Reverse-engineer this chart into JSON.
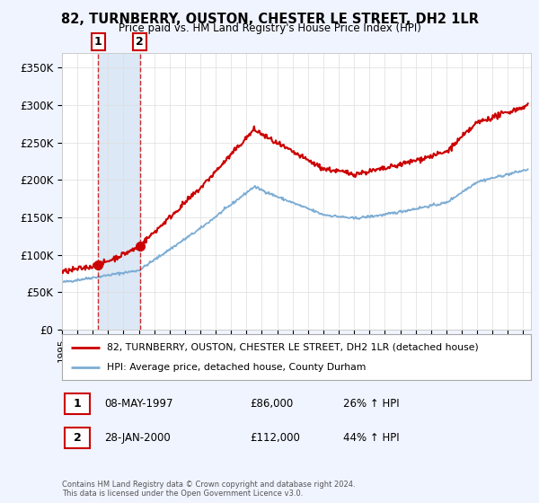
{
  "title": "82, TURNBERRY, OUSTON, CHESTER LE STREET, DH2 1LR",
  "subtitle": "Price paid vs. HM Land Registry's House Price Index (HPI)",
  "legend_line1": "82, TURNBERRY, OUSTON, CHESTER LE STREET, DH2 1LR (detached house)",
  "legend_line2": "HPI: Average price, detached house, County Durham",
  "transaction1_date": "08-MAY-1997",
  "transaction1_price": "£86,000",
  "transaction1_hpi": "26% ↑ HPI",
  "transaction1_year": 1997.36,
  "transaction1_value": 86000,
  "transaction2_date": "28-JAN-2000",
  "transaction2_price": "£112,000",
  "transaction2_hpi": "44% ↑ HPI",
  "transaction2_year": 2000.07,
  "transaction2_value": 112000,
  "xmin": 1995,
  "xmax": 2025.5,
  "ymin": 0,
  "ymax": 370000,
  "red_line_color": "#cc0000",
  "blue_line_color": "#7dadd4",
  "background_color": "#f0f4ff",
  "plot_bg_color": "#ffffff",
  "shade_color": "#dce8f5",
  "footnote": "Contains HM Land Registry data © Crown copyright and database right 2024.\nThis data is licensed under the Open Government Licence v3.0."
}
